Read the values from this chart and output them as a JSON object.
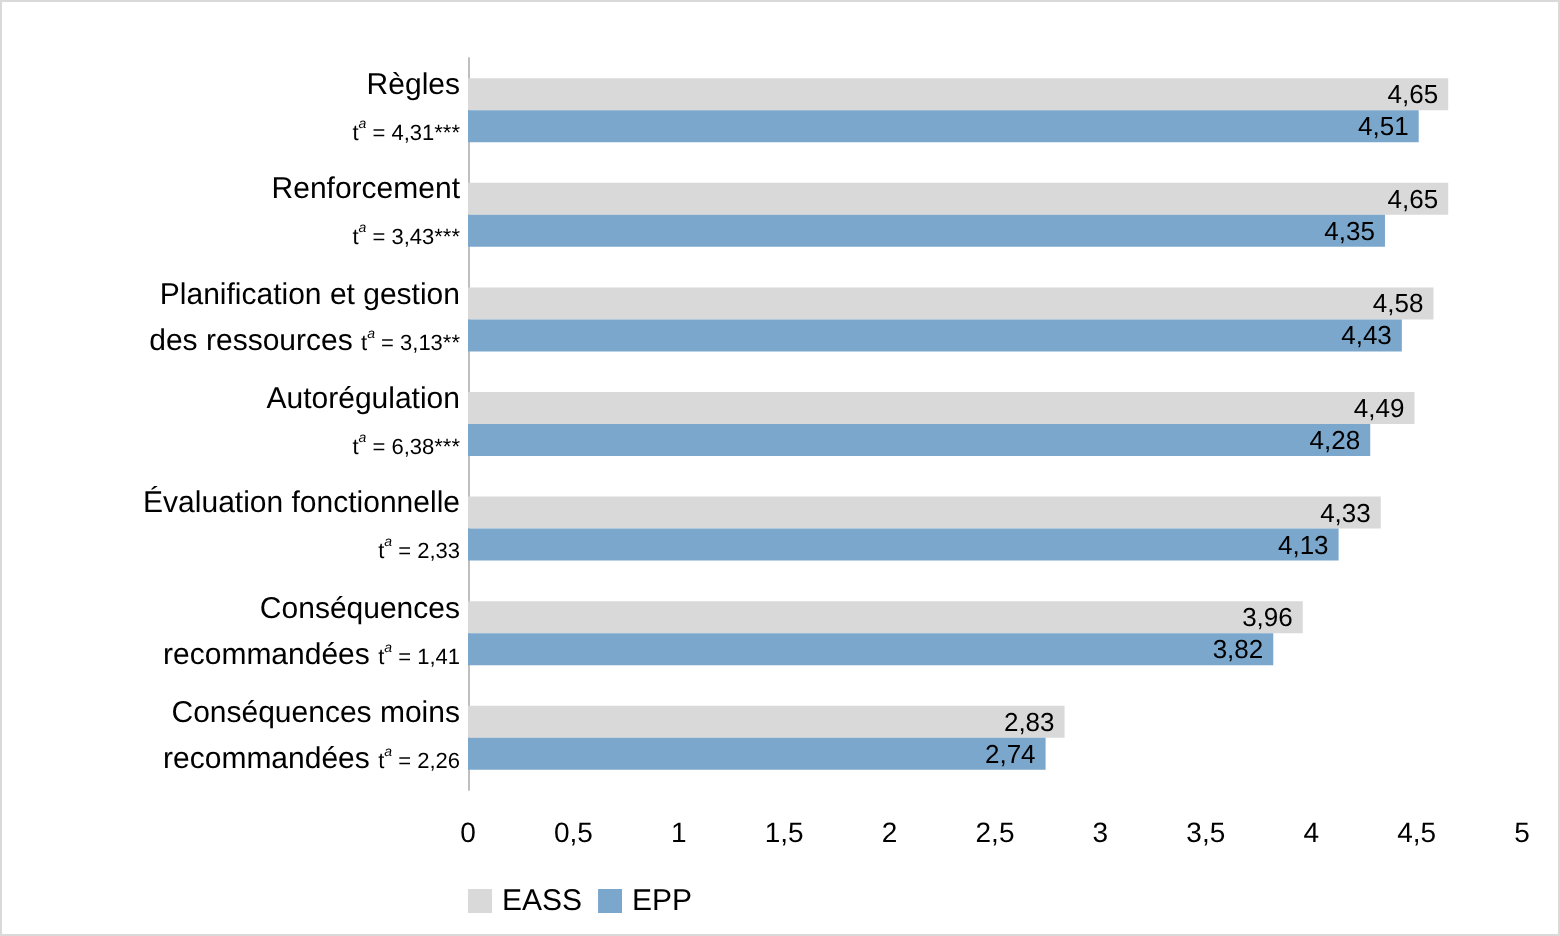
{
  "chart_data": {
    "type": "bar",
    "orientation": "horizontal",
    "categories": [
      "Règles\nt$^{a}$ = 4,31***",
      "Renforcement\nt$^{a}$ = 3,43***",
      "Planification et gestion\ndes ressources t$^{a}$ = 3,13**",
      "Autorégulation\nt$^{a}$ = 6,38***",
      "Évaluation fonctionnelle\nt$^{a}$ = 2,33",
      "Conséquences\nrecommandées t$^{a}$ = 1,41",
      "Conséquences moins\nrecommandées t$^{a}$ = 2,26"
    ],
    "series": [
      {
        "name": "EASS",
        "color": "#d9d9d9",
        "values": [
          4.65,
          4.65,
          4.58,
          4.49,
          4.33,
          3.96,
          2.83
        ],
        "value_labels": [
          "4,65",
          "4,65",
          "4,58",
          "4,49",
          "4,33",
          "3,96",
          "2,83"
        ]
      },
      {
        "name": "EPP",
        "color": "#7ba7cc",
        "values": [
          4.51,
          4.35,
          4.43,
          4.28,
          4.13,
          3.82,
          2.74
        ],
        "value_labels": [
          "4,51",
          "4,35",
          "4,43",
          "4,28",
          "4,13",
          "3,82",
          "2,74"
        ]
      }
    ],
    "xlim": [
      0,
      5
    ],
    "xticks": [
      0,
      {
        "value": 0.5,
        "label": "0,5"
      },
      1,
      {
        "value": 1.5,
        "label": "1,5"
      },
      2,
      {
        "value": 2.5,
        "label": "2,5"
      },
      3,
      {
        "value": 3.5,
        "label": "3,5"
      },
      4,
      {
        "value": 4.5,
        "label": "4,5"
      },
      5
    ],
    "grid": false,
    "legend": "bottom left"
  }
}
